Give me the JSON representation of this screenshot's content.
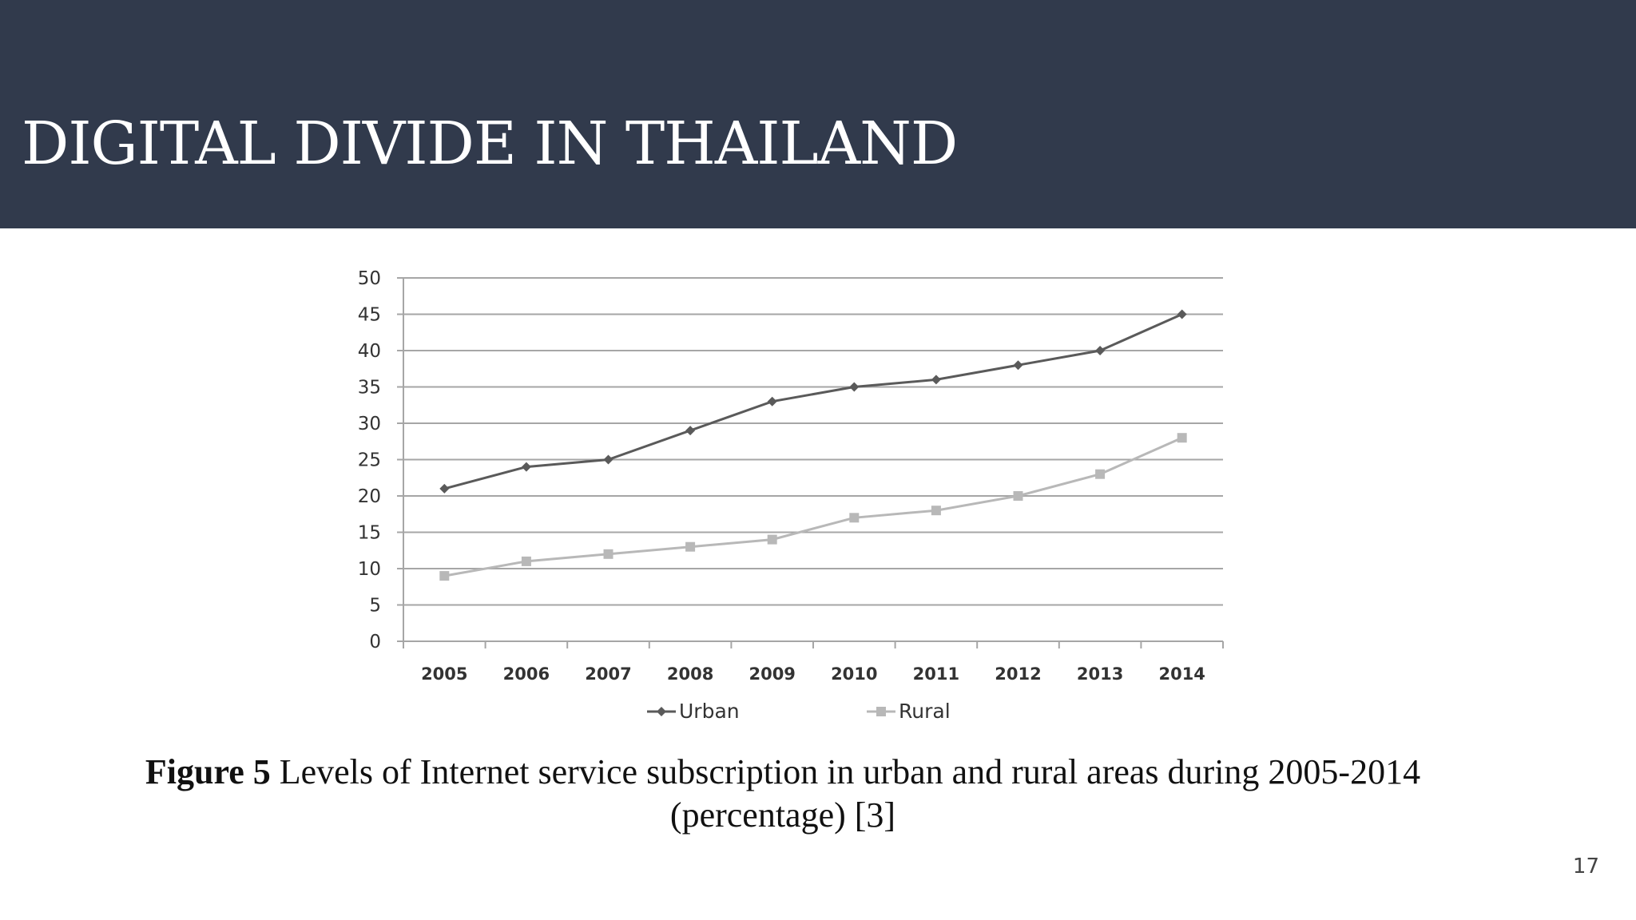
{
  "slide": {
    "title": "DIGITAL DIVIDE IN THAILAND",
    "page_number": "17"
  },
  "caption": {
    "figure_label": "Figure 5",
    "text": " Levels of Internet service subscription in urban and rural areas during 2005-2014 (percentage) [3]"
  },
  "colors": {
    "header_bg": "#313a4c",
    "urban": "#5a5a5a",
    "rural": "#b8b8b8",
    "grid": "#a6a6a6"
  },
  "chart_data": {
    "type": "line",
    "categories": [
      "2005",
      "2006",
      "2007",
      "2008",
      "2009",
      "2010",
      "2011",
      "2012",
      "2013",
      "2014"
    ],
    "series": [
      {
        "name": "Urban",
        "marker": "diamond",
        "values": [
          21,
          24,
          25,
          29,
          33,
          35,
          36,
          38,
          40,
          45
        ]
      },
      {
        "name": "Rural",
        "marker": "square",
        "values": [
          9,
          11,
          12,
          13,
          14,
          17,
          18,
          20,
          23,
          28
        ]
      }
    ],
    "yticks": [
      "0",
      "5",
      "10",
      "15",
      "20",
      "25",
      "30",
      "35",
      "40",
      "45",
      "50"
    ],
    "ylim": [
      0,
      50
    ],
    "grid": true,
    "legend": "bottom"
  }
}
